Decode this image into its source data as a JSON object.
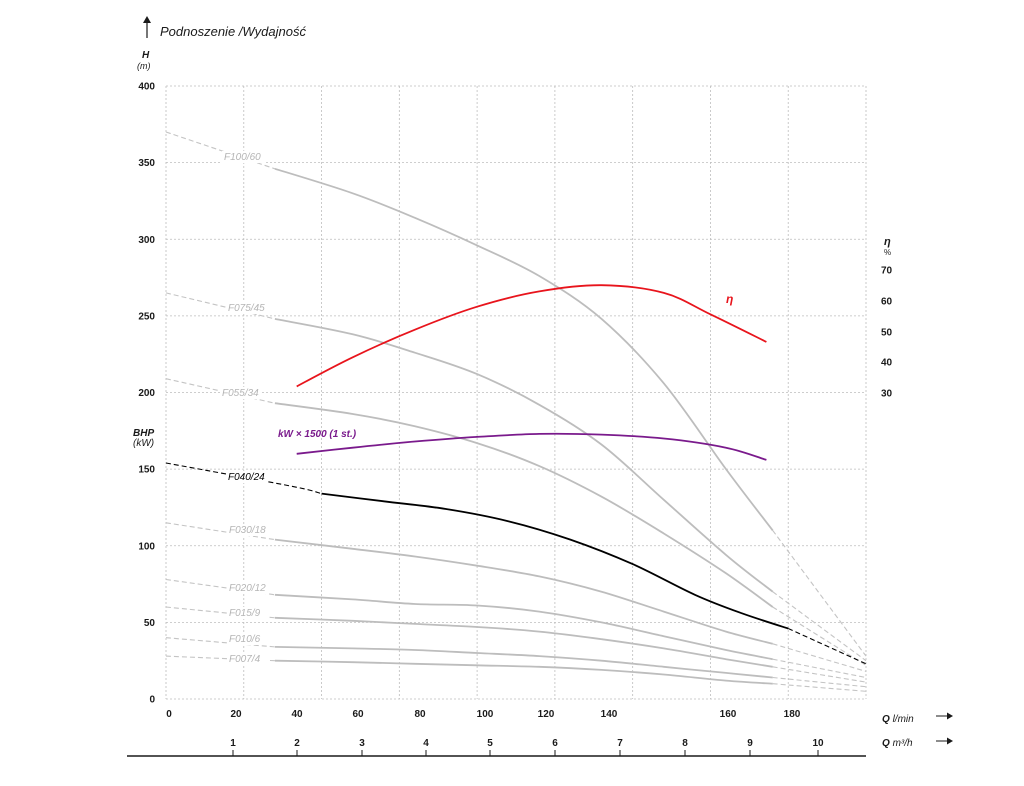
{
  "chart_data": {
    "type": "line",
    "title": "Podnoszenie /Wydajność",
    "y_axis": {
      "label": "H",
      "unit": "(m)",
      "range": [
        0,
        400
      ],
      "ticks": [
        "0",
        "50",
        "100",
        "150",
        "200",
        "250",
        "300",
        "350",
        "400"
      ]
    },
    "x_axis_lmin": {
      "label": "Q",
      "unit": "l/min",
      "range": [
        0,
        225
      ],
      "ticks": [
        "0",
        "20",
        "40",
        "60",
        "80",
        "100",
        "120",
        "140",
        "160",
        "180"
      ]
    },
    "x_axis_m3h": {
      "label": "Q",
      "unit": "m³/h",
      "ticks": [
        "1",
        "2",
        "3",
        "4",
        "5",
        "6",
        "7",
        "8",
        "9",
        "10"
      ]
    },
    "right_axis": {
      "label": "η",
      "unit": "%",
      "range": [
        30,
        70
      ],
      "ticks": [
        "30",
        "40",
        "50",
        "60",
        "70"
      ]
    },
    "bhp_label": {
      "label": "BHP",
      "unit": "(kW)"
    },
    "grid": true,
    "head_curves": [
      {
        "name": "F100/60",
        "color": "#bdbdbd",
        "solid": [
          [
            35,
            346
          ],
          [
            60,
            330
          ],
          [
            80,
            314
          ],
          [
            100,
            296
          ],
          [
            120,
            276
          ],
          [
            140,
            248
          ],
          [
            160,
            206
          ],
          [
            180,
            150
          ],
          [
            195,
            110
          ]
        ],
        "dashed_start": [
          [
            0,
            370
          ],
          [
            35,
            346
          ]
        ],
        "dashed_end": [
          [
            195,
            110
          ],
          [
            225,
            28
          ]
        ]
      },
      {
        "name": "F075/45",
        "color": "#bdbdbd",
        "solid": [
          [
            35,
            248
          ],
          [
            60,
            238
          ],
          [
            80,
            226
          ],
          [
            100,
            212
          ],
          [
            120,
            192
          ],
          [
            140,
            166
          ],
          [
            160,
            130
          ],
          [
            180,
            94
          ],
          [
            195,
            70
          ]
        ],
        "dashed_start": [
          [
            0,
            265
          ],
          [
            35,
            248
          ]
        ],
        "dashed_end": [
          [
            195,
            70
          ],
          [
            225,
            25
          ]
        ]
      },
      {
        "name": "F055/34",
        "color": "#bdbdbd",
        "solid": [
          [
            35,
            193
          ],
          [
            60,
            186
          ],
          [
            80,
            178
          ],
          [
            100,
            167
          ],
          [
            120,
            152
          ],
          [
            140,
            132
          ],
          [
            160,
            108
          ],
          [
            180,
            82
          ],
          [
            195,
            60
          ]
        ],
        "dashed_start": [
          [
            0,
            209
          ],
          [
            35,
            193
          ]
        ],
        "dashed_end": [
          [
            195,
            60
          ],
          [
            225,
            22
          ]
        ]
      },
      {
        "name": "F040/24",
        "color": "#000000",
        "solid": [
          [
            50,
            134
          ],
          [
            70,
            129
          ],
          [
            90,
            124
          ],
          [
            110,
            116
          ],
          [
            130,
            104
          ],
          [
            150,
            88
          ],
          [
            170,
            68
          ],
          [
            185,
            56
          ],
          [
            200,
            46
          ]
        ],
        "dashed_start": [
          [
            0,
            154
          ],
          [
            40,
            139
          ],
          [
            50,
            134
          ]
        ],
        "dashed_end": [
          [
            200,
            46
          ],
          [
            225,
            23
          ]
        ]
      },
      {
        "name": "F030/18",
        "color": "#bdbdbd",
        "solid": [
          [
            35,
            104
          ],
          [
            60,
            98
          ],
          [
            80,
            93
          ],
          [
            100,
            87
          ],
          [
            120,
            80
          ],
          [
            140,
            70
          ],
          [
            160,
            57
          ],
          [
            180,
            44
          ],
          [
            195,
            36
          ]
        ],
        "dashed_start": [
          [
            0,
            115
          ],
          [
            35,
            104
          ]
        ],
        "dashed_end": [
          [
            195,
            36
          ],
          [
            225,
            18
          ]
        ]
      },
      {
        "name": "F020/12",
        "color": "#bdbdbd",
        "solid": [
          [
            35,
            68
          ],
          [
            60,
            65
          ],
          [
            80,
            62
          ],
          [
            100,
            61
          ],
          [
            120,
            57
          ],
          [
            140,
            50
          ],
          [
            160,
            41
          ],
          [
            180,
            32
          ],
          [
            195,
            26
          ]
        ],
        "dashed_start": [
          [
            0,
            78
          ],
          [
            35,
            68
          ]
        ],
        "dashed_end": [
          [
            195,
            26
          ],
          [
            225,
            14
          ]
        ]
      },
      {
        "name": "F015/9",
        "color": "#bdbdbd",
        "solid": [
          [
            35,
            53
          ],
          [
            60,
            51
          ],
          [
            80,
            49
          ],
          [
            100,
            47
          ],
          [
            120,
            44
          ],
          [
            140,
            39
          ],
          [
            160,
            33
          ],
          [
            180,
            26
          ],
          [
            195,
            21
          ]
        ],
        "dashed_start": [
          [
            0,
            60
          ],
          [
            35,
            53
          ]
        ],
        "dashed_end": [
          [
            195,
            21
          ],
          [
            225,
            11
          ]
        ]
      },
      {
        "name": "F010/6",
        "color": "#bdbdbd",
        "solid": [
          [
            35,
            34
          ],
          [
            60,
            33
          ],
          [
            80,
            32
          ],
          [
            100,
            30
          ],
          [
            120,
            28
          ],
          [
            140,
            25
          ],
          [
            160,
            21
          ],
          [
            180,
            17
          ],
          [
            195,
            14
          ]
        ],
        "dashed_start": [
          [
            0,
            40
          ],
          [
            35,
            34
          ]
        ],
        "dashed_end": [
          [
            195,
            14
          ],
          [
            225,
            8
          ]
        ]
      },
      {
        "name": "F007/4",
        "color": "#bdbdbd",
        "solid": [
          [
            35,
            25
          ],
          [
            60,
            24
          ],
          [
            80,
            23
          ],
          [
            100,
            22
          ],
          [
            120,
            21
          ],
          [
            140,
            19
          ],
          [
            160,
            16
          ],
          [
            180,
            12
          ],
          [
            195,
            10
          ]
        ],
        "dashed_start": [
          [
            0,
            28
          ],
          [
            35,
            25
          ]
        ],
        "dashed_end": [
          [
            195,
            10
          ],
          [
            225,
            5
          ]
        ]
      }
    ],
    "efficiency_curve": {
      "name": "η",
      "color": "#e8141c",
      "points": [
        [
          42,
          204
        ],
        [
          60,
          223
        ],
        [
          80,
          241
        ],
        [
          100,
          256
        ],
        [
          120,
          266
        ],
        [
          140,
          270
        ],
        [
          160,
          265
        ],
        [
          175,
          251
        ],
        [
          193,
          233
        ]
      ]
    },
    "power_curve": {
      "name": "kW × 1500 (1 st.)",
      "color": "#7a1a8c",
      "points": [
        [
          42,
          160
        ],
        [
          60,
          164
        ],
        [
          80,
          168
        ],
        [
          100,
          171
        ],
        [
          120,
          173
        ],
        [
          140,
          172.5
        ],
        [
          160,
          170
        ],
        [
          180,
          164
        ],
        [
          193,
          156
        ]
      ]
    }
  }
}
